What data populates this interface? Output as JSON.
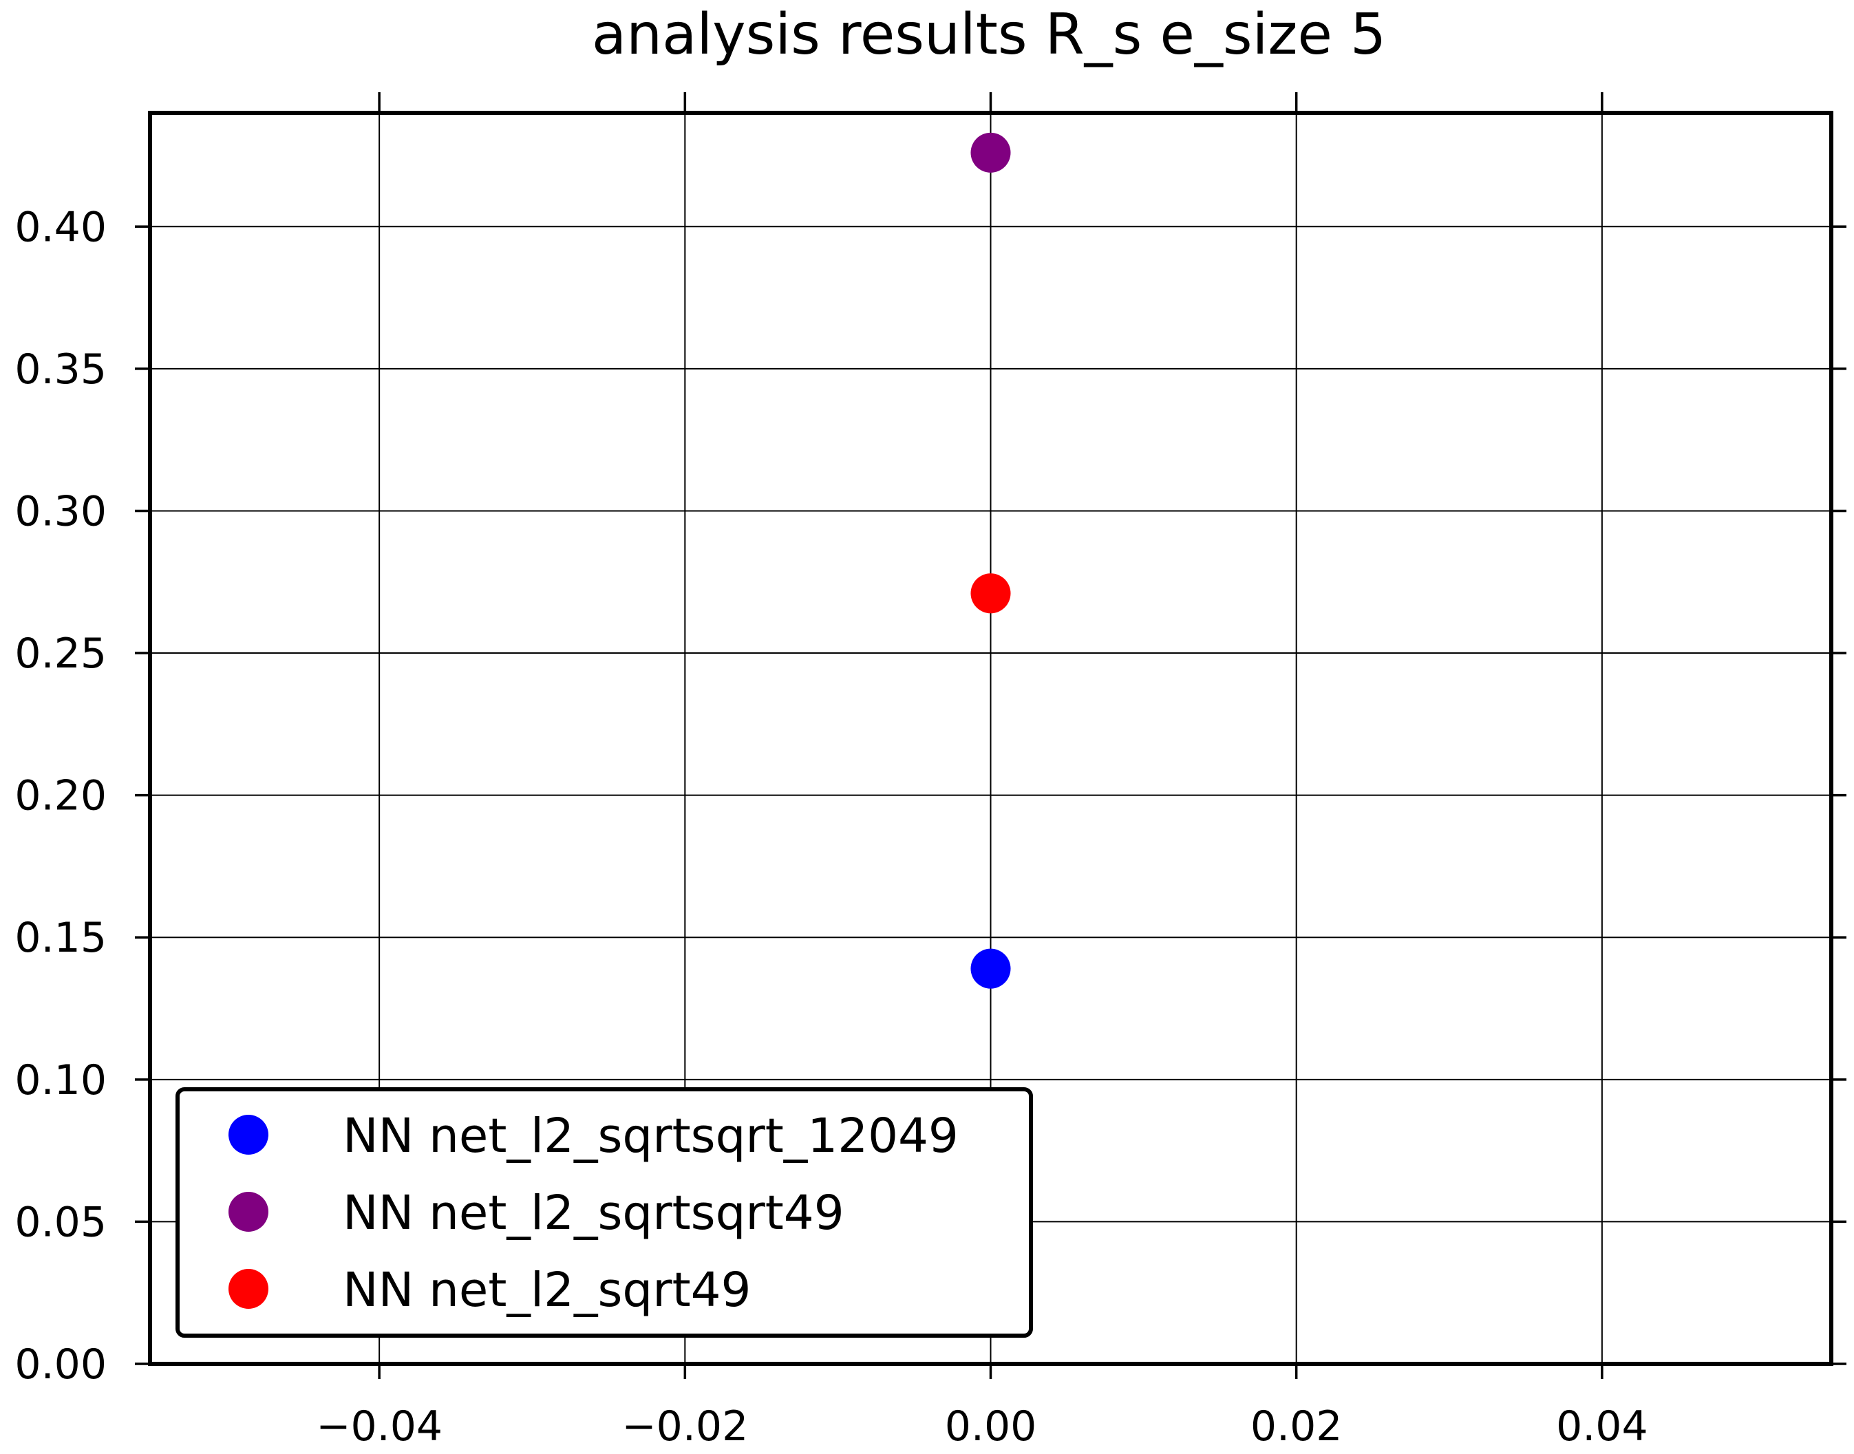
{
  "chart_data": {
    "type": "scatter",
    "title": "analysis results R_s  e_size 5",
    "xlabel": "",
    "ylabel": "",
    "xlim": [
      -0.055,
      0.055
    ],
    "ylim": [
      0.0,
      0.44
    ],
    "xticks": [
      -0.04,
      -0.02,
      0.0,
      0.02,
      0.04
    ],
    "xtick_labels": [
      "−0.04",
      "−0.02",
      "0.00",
      "0.02",
      "0.04"
    ],
    "yticks": [
      0.0,
      0.05,
      0.1,
      0.15,
      0.2,
      0.25,
      0.3,
      0.35,
      0.4
    ],
    "ytick_labels": [
      "0.00",
      "0.05",
      "0.10",
      "0.15",
      "0.20",
      "0.25",
      "0.30",
      "0.35",
      "0.40"
    ],
    "grid": true,
    "legend_position": "lower-left",
    "series": [
      {
        "name": "NN net_l2_sqrtsqrt_12049",
        "color": "#0000ff",
        "x": [
          0.0
        ],
        "y": [
          0.139
        ]
      },
      {
        "name": "NN net_l2_sqrtsqrt49",
        "color": "#800080",
        "x": [
          0.0
        ],
        "y": [
          0.426
        ]
      },
      {
        "name": "NN net_l2_sqrt49",
        "color": "#ff0000",
        "x": [
          0.0
        ],
        "y": [
          0.271
        ]
      }
    ]
  }
}
